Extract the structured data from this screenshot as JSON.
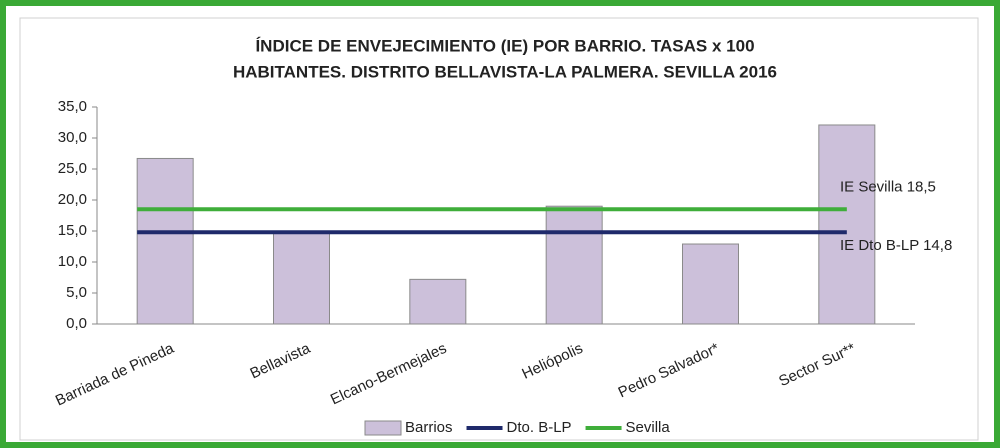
{
  "chart_data": {
    "type": "bar",
    "title": [
      "ÍNDICE DE ENVEJECIMIENTO (IE) POR BARRIO. TASAS x 100",
      "HABITANTES. DISTRITO BELLAVISTA-LA PALMERA. SEVILLA 2016"
    ],
    "categories": [
      "Barriada de Pineda",
      "Bellavista",
      "Elcano-Bermejales",
      "Heliópolis",
      "Pedro Salvador*",
      "Sector Sur**"
    ],
    "series": [
      {
        "name": "Barrios",
        "type": "bar",
        "color": "#ccc0da",
        "values": [
          26.7,
          14.8,
          7.2,
          19.0,
          12.9,
          32.1
        ]
      },
      {
        "name": "Dto. B-LP",
        "type": "line",
        "color": "#1f2a6b",
        "values": [
          14.8,
          14.8,
          14.8,
          14.8,
          14.8,
          14.8
        ]
      },
      {
        "name": "Sevilla",
        "type": "line",
        "color": "#3fae3a",
        "values": [
          18.5,
          18.5,
          18.5,
          18.5,
          18.5,
          18.5
        ]
      }
    ],
    "annotations": [
      {
        "text": "IE Sevilla 18,5",
        "value": 18.5
      },
      {
        "text": "IE Dto B-LP 14,8",
        "value": 14.8
      }
    ],
    "ylim": [
      0,
      35
    ],
    "yticks": [
      {
        "value": 0,
        "label": "0,0"
      },
      {
        "value": 5,
        "label": "5,0"
      },
      {
        "value": 10,
        "label": "10,0"
      },
      {
        "value": 15,
        "label": "15,0"
      },
      {
        "value": 20,
        "label": "20,0"
      },
      {
        "value": 25,
        "label": "25,0"
      },
      {
        "value": 30,
        "label": "30,0"
      },
      {
        "value": 35,
        "label": "35,0"
      }
    ],
    "grid": false,
    "legend": "bottom"
  }
}
